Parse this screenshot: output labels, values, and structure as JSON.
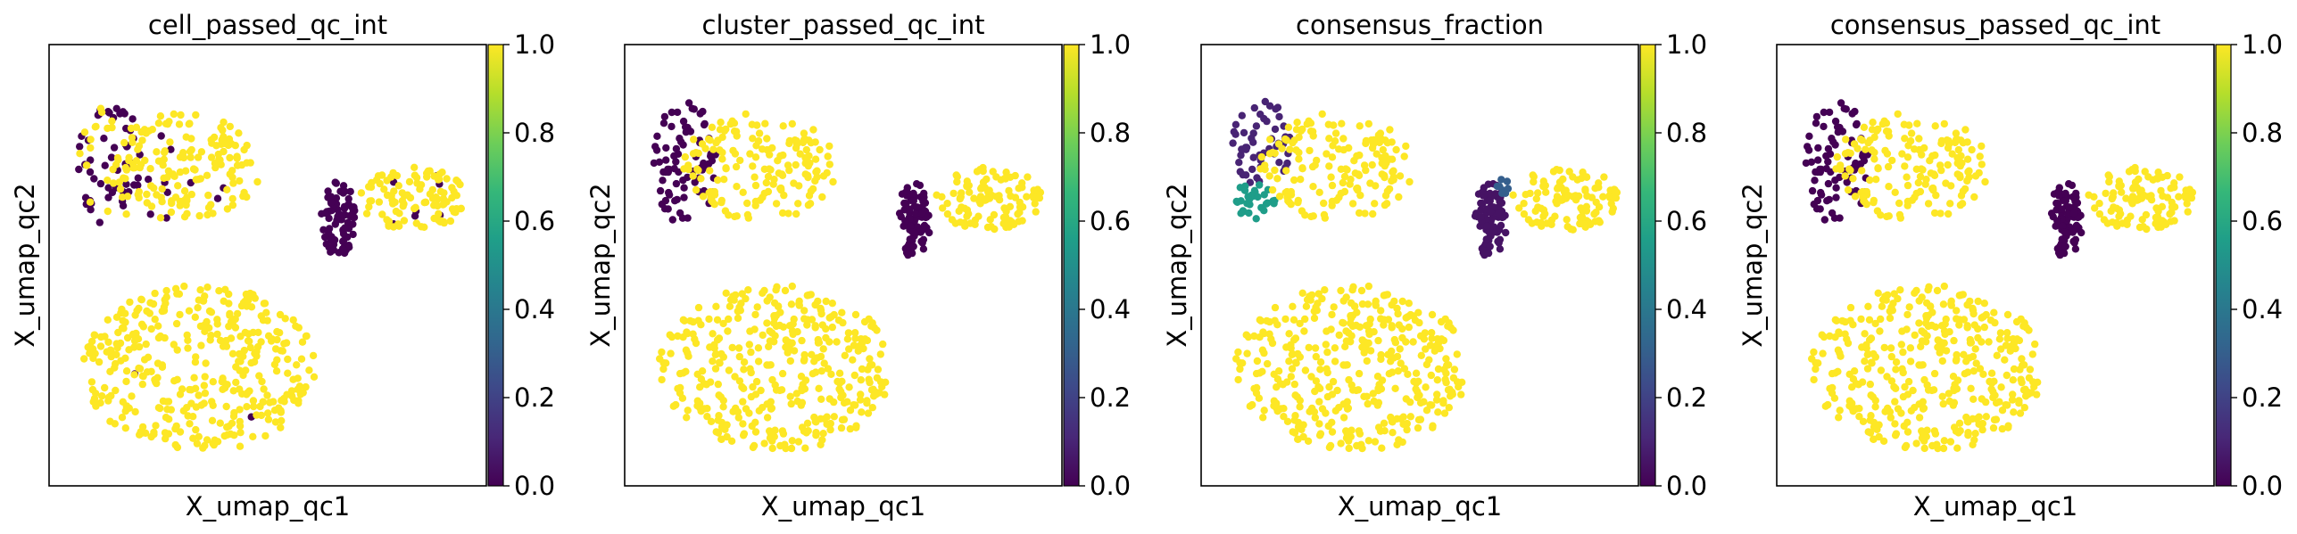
{
  "figure": {
    "colormap": "viridis",
    "colormap_stops": [
      "#440154",
      "#482878",
      "#3e4989",
      "#31688e",
      "#26828e",
      "#1f9e89",
      "#35b779",
      "#6ece58",
      "#b5de2b",
      "#fde725"
    ]
  },
  "chart_data": [
    {
      "type": "scatter",
      "title": "cell_passed_qc_int",
      "xlabel": "X_umap_qc1",
      "ylabel": "X_umap_qc2",
      "xticks": false,
      "yticks": false,
      "grid": false,
      "colorbar": {
        "ticks": [
          "0.0",
          "0.2",
          "0.4",
          "0.6",
          "0.8",
          "1.0"
        ],
        "range": [
          0,
          1
        ]
      },
      "clusters": [
        {
          "cx": -7.5,
          "cy": 4.2,
          "rx": 1.3,
          "ry": 2.6,
          "n": 80,
          "value": 0,
          "mix": 0.3
        },
        {
          "cx": -4.5,
          "cy": 4.0,
          "rx": 3.2,
          "ry": 2.2,
          "n": 160,
          "value": 1,
          "mix": 0.05
        },
        {
          "cx": 1.9,
          "cy": 1.9,
          "rx": 0.7,
          "ry": 1.6,
          "n": 85,
          "value": 0
        },
        {
          "cx": 5.0,
          "cy": 2.7,
          "rx": 2.2,
          "ry": 1.3,
          "n": 110,
          "value": 1,
          "mix": 0.08
        },
        {
          "cx": -3.8,
          "cy": -4.2,
          "rx": 4.8,
          "ry": 3.4,
          "n": 380,
          "value": 1,
          "mix": 0.02
        }
      ]
    },
    {
      "type": "scatter",
      "title": "cluster_passed_qc_int",
      "xlabel": "X_umap_qc1",
      "ylabel": "X_umap_qc2",
      "xticks": false,
      "yticks": false,
      "grid": false,
      "colorbar": {
        "ticks": [
          "0.0",
          "0.2",
          "0.4",
          "0.6",
          "0.8",
          "1.0"
        ],
        "range": [
          0,
          1
        ]
      },
      "clusters": [
        {
          "cx": -7.5,
          "cy": 4.2,
          "rx": 1.3,
          "ry": 2.6,
          "n": 80,
          "value": 0
        },
        {
          "cx": -4.5,
          "cy": 4.0,
          "rx": 3.2,
          "ry": 2.2,
          "n": 160,
          "value": 1
        },
        {
          "cx": 1.9,
          "cy": 1.9,
          "rx": 0.7,
          "ry": 1.6,
          "n": 85,
          "value": 0
        },
        {
          "cx": 5.0,
          "cy": 2.7,
          "rx": 2.2,
          "ry": 1.3,
          "n": 110,
          "value": 1
        },
        {
          "cx": -3.8,
          "cy": -4.2,
          "rx": 4.8,
          "ry": 3.4,
          "n": 380,
          "value": 1
        }
      ]
    },
    {
      "type": "scatter",
      "title": "consensus_fraction",
      "xlabel": "X_umap_qc1",
      "ylabel": "X_umap_qc2",
      "xticks": false,
      "yticks": false,
      "grid": false,
      "colorbar": {
        "ticks": [
          "0.0",
          "0.2",
          "0.4",
          "0.6",
          "0.8",
          "1.0"
        ],
        "range": [
          0,
          1
        ]
      },
      "clusters": [
        {
          "cx": -7.5,
          "cy": 5.0,
          "rx": 1.2,
          "ry": 1.8,
          "n": 55,
          "value": 0.1
        },
        {
          "cx": -7.8,
          "cy": 2.6,
          "rx": 0.9,
          "ry": 0.8,
          "n": 30,
          "value": 0.55
        },
        {
          "cx": -4.5,
          "cy": 4.0,
          "rx": 3.2,
          "ry": 2.2,
          "n": 160,
          "value": 1
        },
        {
          "cx": 1.9,
          "cy": 1.9,
          "rx": 0.7,
          "ry": 1.6,
          "n": 85,
          "value": 0.05
        },
        {
          "cx": 2.4,
          "cy": 3.2,
          "rx": 0.4,
          "ry": 0.3,
          "n": 8,
          "value": 0.3
        },
        {
          "cx": 5.0,
          "cy": 2.7,
          "rx": 2.2,
          "ry": 1.3,
          "n": 110,
          "value": 1
        },
        {
          "cx": -3.8,
          "cy": -4.2,
          "rx": 4.8,
          "ry": 3.4,
          "n": 380,
          "value": 1
        }
      ]
    },
    {
      "type": "scatter",
      "title": "consensus_passed_qc_int",
      "xlabel": "X_umap_qc1",
      "ylabel": "X_umap_qc2",
      "xticks": false,
      "yticks": false,
      "grid": false,
      "colorbar": {
        "ticks": [
          "0.0",
          "0.2",
          "0.4",
          "0.6",
          "0.8",
          "1.0"
        ],
        "range": [
          0,
          1
        ]
      },
      "clusters": [
        {
          "cx": -7.5,
          "cy": 4.2,
          "rx": 1.3,
          "ry": 2.6,
          "n": 80,
          "value": 0
        },
        {
          "cx": -4.5,
          "cy": 4.0,
          "rx": 3.2,
          "ry": 2.2,
          "n": 160,
          "value": 1
        },
        {
          "cx": 1.9,
          "cy": 1.9,
          "rx": 0.7,
          "ry": 1.6,
          "n": 85,
          "value": 0
        },
        {
          "cx": 5.0,
          "cy": 2.7,
          "rx": 2.2,
          "ry": 1.3,
          "n": 110,
          "value": 1
        },
        {
          "cx": -3.8,
          "cy": -4.2,
          "rx": 4.8,
          "ry": 3.4,
          "n": 380,
          "value": 1
        }
      ]
    }
  ]
}
